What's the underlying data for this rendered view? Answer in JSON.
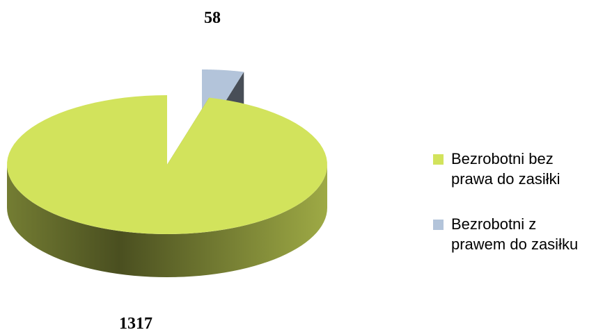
{
  "chart_data": {
    "type": "pie",
    "categories": [
      "Bezrobotni bez prawa do zasiłki",
      "Bezrobotni z prawem do zasiłku"
    ],
    "values": [
      1317,
      58
    ],
    "colors": [
      "#d2e35c",
      "#b3c4da"
    ],
    "legend": "right"
  }
}
